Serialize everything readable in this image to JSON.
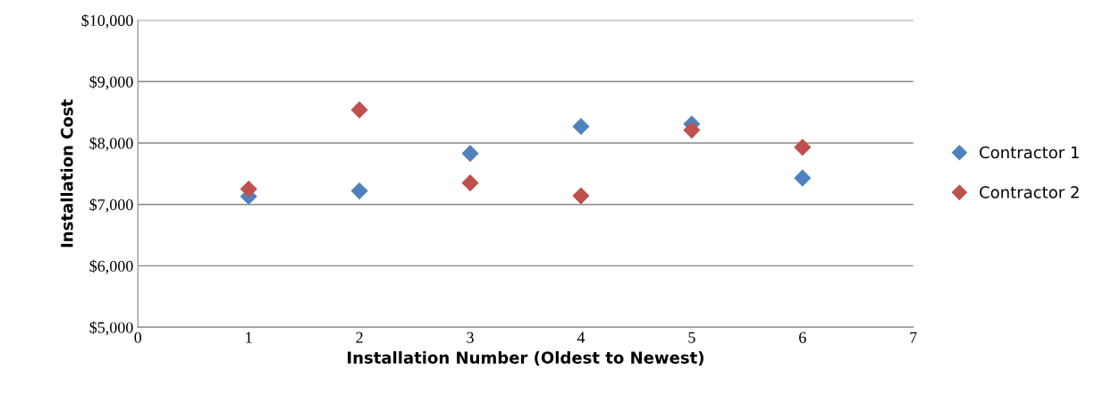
{
  "chart_data": {
    "type": "scatter",
    "xlabel": "Installation Number (Oldest to Newest)",
    "ylabel": "Installation Cost",
    "x": [
      1,
      2,
      3,
      4,
      5,
      6
    ],
    "series": [
      {
        "name": "Contractor 1",
        "color": "#4f81bd",
        "values": [
          7130,
          7220,
          7830,
          8270,
          8310,
          7430
        ]
      },
      {
        "name": "Contractor 2",
        "color": "#c0504d",
        "values": [
          7250,
          8540,
          7350,
          7140,
          8210,
          7930
        ]
      }
    ],
    "xlim": [
      0,
      7
    ],
    "xticks": [
      0,
      1,
      2,
      3,
      4,
      5,
      6,
      7
    ],
    "ylim": [
      5000,
      10000
    ],
    "yticks": [
      {
        "value": 5000,
        "label": "$5,000"
      },
      {
        "value": 6000,
        "label": "$6,000"
      },
      {
        "value": 7000,
        "label": "$7,000"
      },
      {
        "value": 8000,
        "label": "$8,000"
      },
      {
        "value": 9000,
        "label": "$9,000"
      },
      {
        "value": 10000,
        "label": "$10,000"
      }
    ],
    "grid": "y",
    "legend": "right",
    "marker": "diamond"
  }
}
